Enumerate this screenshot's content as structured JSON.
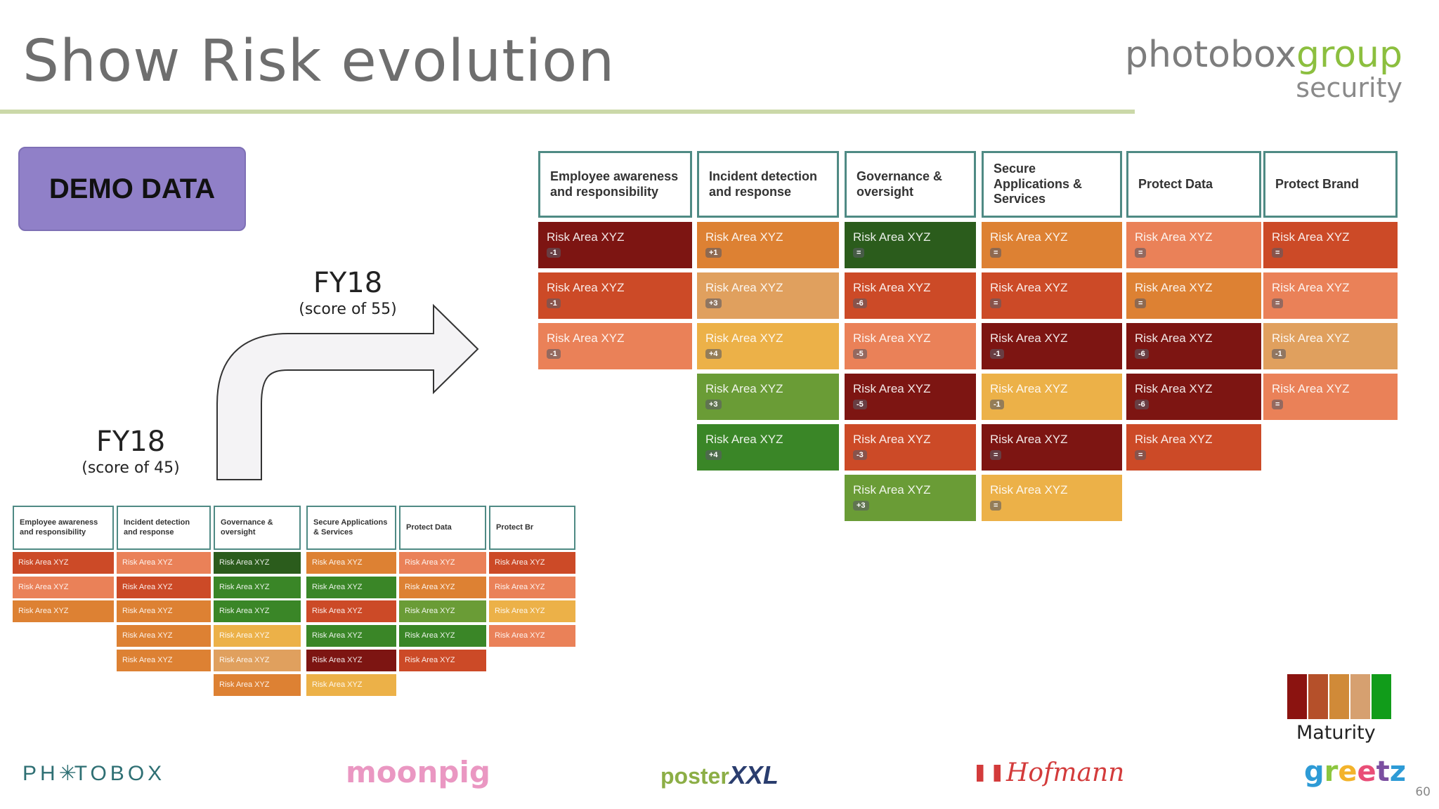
{
  "slide": {
    "title": "Show Risk evolution",
    "page_number": "60"
  },
  "brand": {
    "word1": "photobox",
    "word2": "group",
    "sub": "security"
  },
  "demo_label": "DEMO DATA",
  "before": {
    "year": "FY18",
    "score": "(score of 45)"
  },
  "after": {
    "year": "FY18",
    "score": "(score of 55)"
  },
  "colors": {
    "dark_red": "#7d1512",
    "red": "#cc4a27",
    "salmon": "#ea8158",
    "orange": "#dd8133",
    "light_orange": "#e0a05e",
    "amber": "#ecb148",
    "dark_green": "#2b5c1c",
    "green": "#3a8627",
    "light_green": "#6a9c36"
  },
  "columns": [
    "Employee awareness and responsibility",
    "Incident detection and response",
    "Governance & oversight",
    "Secure Applications & Services",
    "Protect Data",
    "Protect Brand"
  ],
  "small_columns": [
    "Employee awareness and responsibility",
    "Incident detection and response",
    "Governance & oversight",
    "Secure Applications & Services",
    "Protect Data",
    "Protect Br"
  ],
  "cell_label": "Risk Area XYZ",
  "current_matrix": [
    [
      {
        "color": "dark_red",
        "delta": "-1"
      },
      {
        "color": "red",
        "delta": "-1"
      },
      {
        "color": "salmon",
        "delta": "-1"
      }
    ],
    [
      {
        "color": "orange",
        "delta": "+1"
      },
      {
        "color": "light_orange",
        "delta": "+3"
      },
      {
        "color": "amber",
        "delta": "+4"
      },
      {
        "color": "light_green",
        "delta": "+3"
      },
      {
        "color": "green",
        "delta": "+4"
      }
    ],
    [
      {
        "color": "dark_green",
        "delta": "="
      },
      {
        "color": "red",
        "delta": "-6"
      },
      {
        "color": "salmon",
        "delta": "-5"
      },
      {
        "color": "dark_red",
        "delta": "-5"
      },
      {
        "color": "red",
        "delta": "-3"
      },
      {
        "color": "light_green",
        "delta": "+3"
      }
    ],
    [
      {
        "color": "orange",
        "delta": "="
      },
      {
        "color": "red",
        "delta": "="
      },
      {
        "color": "dark_red",
        "delta": "-1"
      },
      {
        "color": "amber",
        "delta": "-1"
      },
      {
        "color": "dark_red",
        "delta": "="
      },
      {
        "color": "amber",
        "delta": "="
      }
    ],
    [
      {
        "color": "salmon",
        "delta": "="
      },
      {
        "color": "orange",
        "delta": "="
      },
      {
        "color": "dark_red",
        "delta": "-6"
      },
      {
        "color": "dark_red",
        "delta": "-6"
      },
      {
        "color": "red",
        "delta": "="
      }
    ],
    [
      {
        "color": "red",
        "delta": "="
      },
      {
        "color": "salmon",
        "delta": "="
      },
      {
        "color": "light_orange",
        "delta": "-1"
      },
      {
        "color": "salmon",
        "delta": "="
      }
    ]
  ],
  "previous_matrix": [
    [
      "red",
      "salmon",
      "orange"
    ],
    [
      "salmon",
      "red",
      "orange",
      "orange",
      "orange"
    ],
    [
      "dark_green",
      "green",
      "green",
      "amber",
      "light_orange",
      "orange"
    ],
    [
      "orange",
      "green",
      "red",
      "green",
      "dark_red",
      "amber"
    ],
    [
      "salmon",
      "orange",
      "light_green",
      "green",
      "red"
    ],
    [
      "red",
      "salmon",
      "amber",
      "salmon"
    ]
  ],
  "legend": {
    "label": "Maturity",
    "colors": [
      "#8b1310",
      "#b5502a",
      "#d08a38",
      "#d6a070",
      "#119c1a"
    ]
  },
  "logos": [
    {
      "name": "photobox",
      "left": "PH",
      "right": "TOBOX",
      "color": "#2e6f73"
    },
    {
      "name": "moonpig",
      "text": "moonpig",
      "color": "#ea97c2"
    },
    {
      "name": "posterxxl",
      "text1": "poster",
      "text2": "XXL",
      "color1": "#8cae46",
      "color2": "#2a3d6e"
    },
    {
      "name": "hofmann",
      "text": "Hofmann",
      "color": "#d33b3b"
    },
    {
      "name": "greetz",
      "letters": [
        "g",
        "r",
        "e",
        "e",
        "t",
        "z"
      ],
      "letter_colors": [
        "#2e9bd6",
        "#8cc63f",
        "#f3b32b",
        "#e94e77",
        "#7b4fa0",
        "#2e9bd6"
      ]
    }
  ]
}
